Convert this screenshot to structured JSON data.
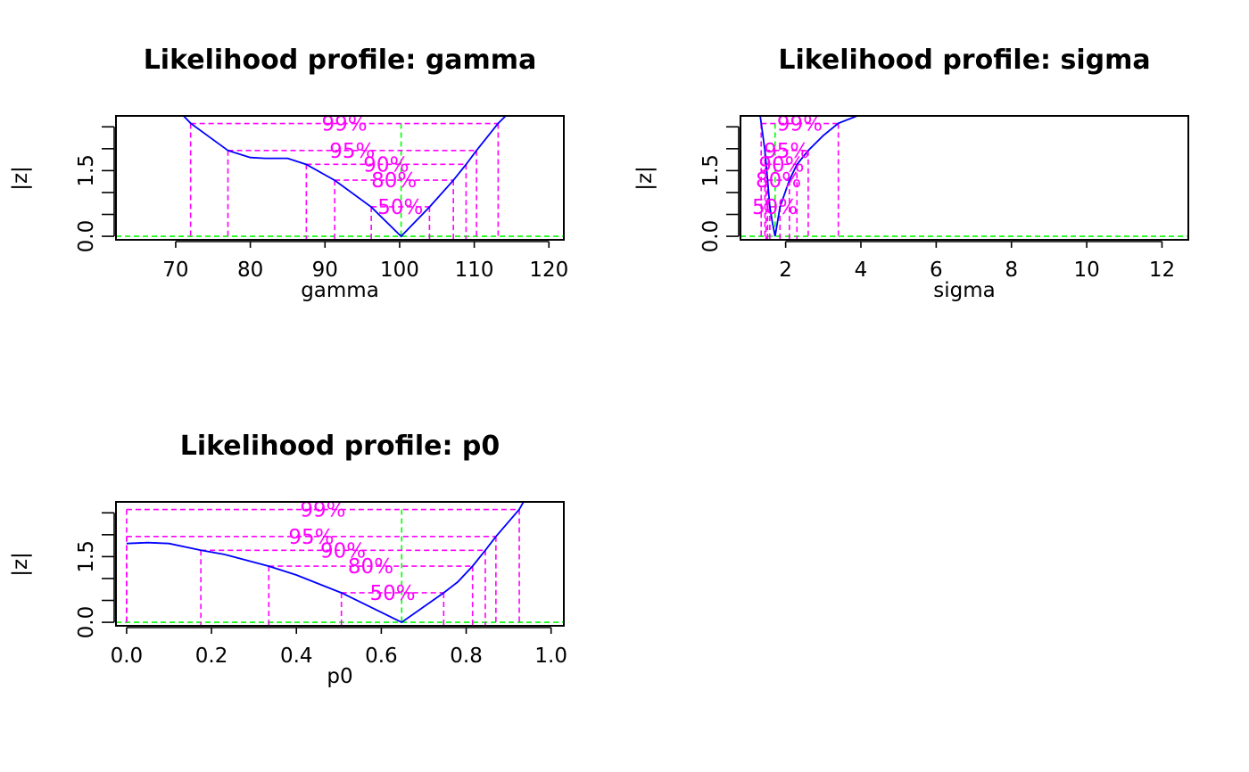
{
  "chart_data": [
    {
      "type": "line",
      "title": "Likelihood profile: gamma",
      "xlabel": "gamma",
      "ylabel": "|z|",
      "xlim": [
        62,
        122
      ],
      "ylim": [
        -0.08,
        2.75
      ],
      "xticks": [
        "70",
        "80",
        "90",
        "100",
        "110",
        "120"
      ],
      "yticks": [
        "0.0",
        "1.5"
      ],
      "mle": 100.2,
      "series": [
        {
          "x": [
            70.5,
            72,
            77,
            80,
            82,
            85,
            87.5,
            91.3,
            96.2,
            100.2,
            104,
            107.2,
            108.9,
            110.3,
            113.2,
            115
          ],
          "y": [
            2.85,
            2.58,
            1.96,
            1.8,
            1.78,
            1.78,
            1.64,
            1.28,
            0.67,
            0,
            0.67,
            1.28,
            1.64,
            1.96,
            2.58,
            2.88
          ]
        }
      ],
      "confidence": [
        {
          "label": "99%",
          "z": 2.576,
          "lower": 72,
          "upper": 113.2
        },
        {
          "label": "95%",
          "z": 1.96,
          "lower": 77,
          "upper": 110.3
        },
        {
          "label": "90%",
          "z": 1.645,
          "lower": 87.5,
          "upper": 108.9
        },
        {
          "label": "80%",
          "z": 1.282,
          "lower": 91.3,
          "upper": 107.2
        },
        {
          "label": "50%",
          "z": 0.674,
          "lower": 96.2,
          "upper": 104
        }
      ]
    },
    {
      "type": "line",
      "title": "Likelihood profile: sigma",
      "xlabel": "sigma",
      "ylabel": "|z|",
      "xlim": [
        0.8,
        12.7
      ],
      "ylim": [
        -0.08,
        2.75
      ],
      "xticks": [
        "2",
        "4",
        "6",
        "8",
        "10",
        "12"
      ],
      "yticks": [
        "0.0",
        "1.5"
      ],
      "mle": 1.72,
      "series": [
        {
          "x": [
            1.3,
            1.45,
            1.52,
            1.58,
            1.65,
            1.72,
            1.85,
            2.1,
            2.3,
            2.6,
            3.0,
            3.4,
            3.9,
            4.2
          ],
          "y": [
            2.9,
            1.96,
            1.28,
            0.67,
            0.3,
            0,
            0.67,
            1.28,
            1.64,
            1.96,
            2.3,
            2.58,
            2.75,
            2.85
          ]
        }
      ],
      "confidence": [
        {
          "label": "99%",
          "z": 2.576,
          "lower": 1.35,
          "upper": 3.4
        },
        {
          "label": "95%",
          "z": 1.96,
          "lower": 1.45,
          "upper": 2.6
        },
        {
          "label": "90%",
          "z": 1.645,
          "lower": 1.48,
          "upper": 2.3
        },
        {
          "label": "80%",
          "z": 1.282,
          "lower": 1.52,
          "upper": 2.1
        },
        {
          "label": "50%",
          "z": 0.674,
          "lower": 1.58,
          "upper": 1.85
        }
      ]
    },
    {
      "type": "line",
      "title": "Likelihood profile: p0",
      "xlabel": "p0",
      "ylabel": "|z|",
      "xlim": [
        -0.025,
        1.03
      ],
      "ylim": [
        -0.08,
        2.75
      ],
      "xticks": [
        "0.0",
        "0.2",
        "0.4",
        "0.6",
        "0.8",
        "1.0"
      ],
      "yticks": [
        "0.0",
        "1.5"
      ],
      "mle": 0.648,
      "series": [
        {
          "x": [
            0.0,
            0.05,
            0.1,
            0.175,
            0.23,
            0.335,
            0.4,
            0.506,
            0.648,
            0.747,
            0.78,
            0.815,
            0.845,
            0.87,
            0.925,
            0.935
          ],
          "y": [
            1.8,
            1.82,
            1.8,
            1.645,
            1.55,
            1.282,
            1.08,
            0.674,
            0,
            0.674,
            0.92,
            1.282,
            1.645,
            1.96,
            2.576,
            2.75
          ]
        }
      ],
      "confidence": [
        {
          "label": "99%",
          "z": 2.576,
          "lower": 0.0,
          "upper": 0.925
        },
        {
          "label": "95%",
          "z": 1.96,
          "lower": 0.0,
          "upper": 0.87
        },
        {
          "label": "90%",
          "z": 1.645,
          "lower": 0.175,
          "upper": 0.845
        },
        {
          "label": "80%",
          "z": 1.282,
          "lower": 0.335,
          "upper": 0.815
        },
        {
          "label": "50%",
          "z": 0.674,
          "lower": 0.506,
          "upper": 0.747
        }
      ]
    }
  ]
}
